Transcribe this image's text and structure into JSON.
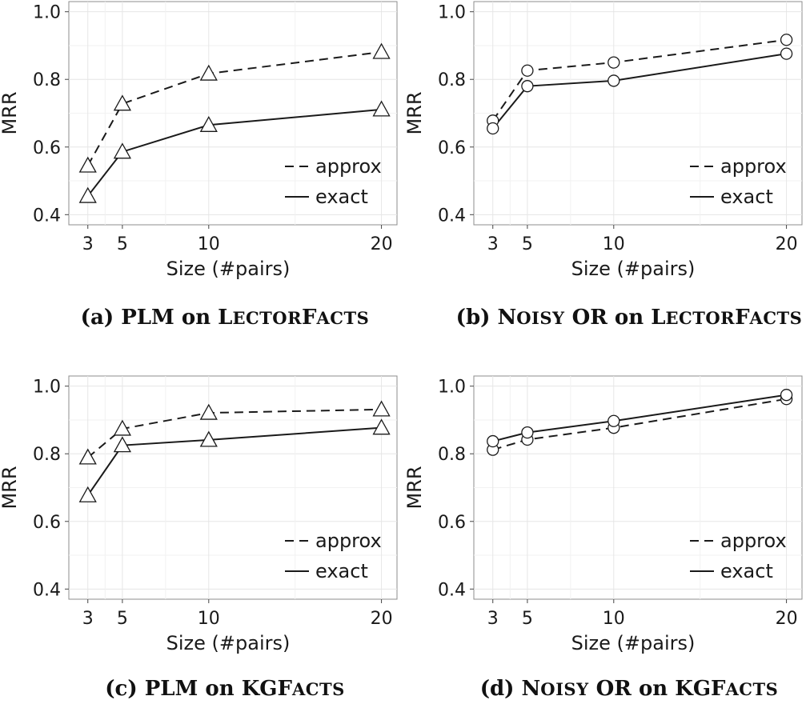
{
  "chart_data": [
    {
      "type": "line",
      "caption": {
        "label": "(a)",
        "model": "PLM",
        "sep": "on",
        "dataset_upper": "L",
        "dataset_sc": "ECTOR",
        "dataset_upper2": "F",
        "dataset_sc2": "ACTS"
      },
      "marker": "triangle",
      "xlabel": "Size (#pairs)",
      "ylabel": "MRR",
      "x": [
        3,
        5,
        10,
        20
      ],
      "xticks": [
        "3",
        "5",
        "10",
        "20"
      ],
      "yticks": [
        "0.4",
        "0.6",
        "0.8",
        "1.0"
      ],
      "ylim": [
        0.37,
        1.03
      ],
      "xlim": [
        1.9,
        20.9
      ],
      "legend_position": "bottom-right",
      "grid": true,
      "series": [
        {
          "name": "approx",
          "style": "dashed",
          "values": [
            0.545,
            0.728,
            0.817,
            0.881
          ]
        },
        {
          "name": "exact",
          "style": "solid",
          "values": [
            0.455,
            0.586,
            0.665,
            0.711
          ]
        }
      ]
    },
    {
      "type": "line",
      "caption": {
        "label": "(b)",
        "model_upper": "N",
        "model_sc": "OISY",
        "model_rest": "OR",
        "sep": "on",
        "dataset_upper": "L",
        "dataset_sc": "ECTOR",
        "dataset_upper2": "F",
        "dataset_sc2": "ACTS"
      },
      "marker": "circle",
      "xlabel": "Size (#pairs)",
      "ylabel": "MRR",
      "x": [
        3,
        5,
        10,
        20
      ],
      "xticks": [
        "3",
        "5",
        "10",
        "20"
      ],
      "yticks": [
        "0.4",
        "0.6",
        "0.8",
        "1.0"
      ],
      "ylim": [
        0.37,
        1.03
      ],
      "xlim": [
        1.9,
        20.9
      ],
      "legend_position": "bottom-right",
      "grid": true,
      "series": [
        {
          "name": "approx",
          "style": "dashed",
          "values": [
            0.678,
            0.826,
            0.85,
            0.917
          ]
        },
        {
          "name": "exact",
          "style": "solid",
          "values": [
            0.655,
            0.78,
            0.796,
            0.876
          ]
        }
      ]
    },
    {
      "type": "line",
      "caption": {
        "label": "(c)",
        "model": "PLM",
        "sep": "on",
        "dataset_upper": "KGF",
        "dataset_sc": "ACTS"
      },
      "marker": "triangle",
      "xlabel": "Size (#pairs)",
      "ylabel": "MRR",
      "x": [
        3,
        5,
        10,
        20
      ],
      "xticks": [
        "3",
        "5",
        "10",
        "20"
      ],
      "yticks": [
        "0.4",
        "0.6",
        "0.8",
        "1.0"
      ],
      "ylim": [
        0.37,
        1.03
      ],
      "xlim": [
        1.9,
        20.9
      ],
      "legend_position": "bottom-right",
      "grid": true,
      "series": [
        {
          "name": "approx",
          "style": "dashed",
          "values": [
            0.789,
            0.874,
            0.921,
            0.931
          ]
        },
        {
          "name": "exact",
          "style": "solid",
          "values": [
            0.677,
            0.825,
            0.841,
            0.877
          ]
        }
      ]
    },
    {
      "type": "line",
      "caption": {
        "label": "(d)",
        "model_upper": "N",
        "model_sc": "OISY",
        "model_rest": "OR",
        "sep": "on",
        "dataset_upper": "KGF",
        "dataset_sc": "ACTS"
      },
      "marker": "circle",
      "xlabel": "Size (#pairs)",
      "ylabel": "MRR",
      "x": [
        3,
        5,
        10,
        20
      ],
      "xticks": [
        "3",
        "5",
        "10",
        "20"
      ],
      "yticks": [
        "0.4",
        "0.6",
        "0.8",
        "1.0"
      ],
      "ylim": [
        0.37,
        1.03
      ],
      "xlim": [
        1.9,
        20.9
      ],
      "legend_position": "bottom-right",
      "grid": true,
      "series": [
        {
          "name": "approx",
          "style": "dashed",
          "values": [
            0.812,
            0.842,
            0.877,
            0.962
          ]
        },
        {
          "name": "exact",
          "style": "solid",
          "values": [
            0.837,
            0.863,
            0.897,
            0.974
          ]
        }
      ]
    }
  ]
}
